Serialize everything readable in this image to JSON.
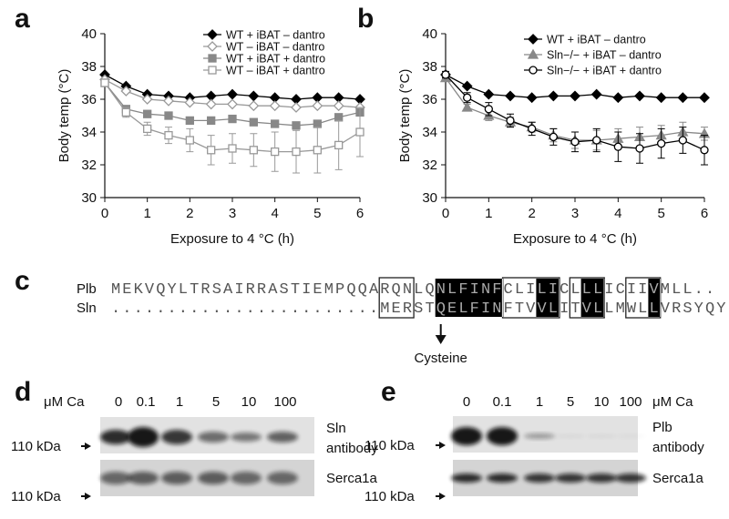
{
  "chart_data": [
    {
      "type": "line",
      "panel_label": "a",
      "y_label": "Body temp (°C)",
      "x_label": "Exposure to 4 °C (h)",
      "x": [
        0,
        0.5,
        1,
        1.5,
        2,
        2.5,
        3,
        3.5,
        4,
        4.5,
        5,
        5.5,
        6
      ],
      "xlim": [
        0,
        6
      ],
      "xticks": [
        0,
        1,
        2,
        3,
        4,
        5,
        6
      ],
      "ylim": [
        30,
        40
      ],
      "yticks": [
        30,
        32,
        34,
        36,
        38,
        40
      ],
      "series": [
        {
          "name": "WT + iBAT – dantro",
          "color": "#000000",
          "marker": "diamond",
          "filled": true,
          "values": [
            37.5,
            36.8,
            36.3,
            36.2,
            36.1,
            36.2,
            36.3,
            36.2,
            36.1,
            36.0,
            36.1,
            36.1,
            36.0
          ]
        },
        {
          "name": "WT – iBAT – dantro",
          "color": "#999999",
          "marker": "diamond",
          "filled": false,
          "values": [
            37.2,
            36.5,
            36.0,
            35.9,
            35.8,
            35.7,
            35.7,
            35.6,
            35.6,
            35.5,
            35.6,
            35.6,
            35.5
          ]
        },
        {
          "name": "WT + iBAT + dantro",
          "color": "#888888",
          "marker": "square",
          "filled": true,
          "values": [
            37.0,
            35.4,
            35.1,
            35.0,
            34.7,
            34.7,
            34.8,
            34.6,
            34.5,
            34.4,
            34.5,
            34.9,
            35.2
          ]
        },
        {
          "name": "WT – iBAT + dantro",
          "color": "#999999",
          "marker": "square",
          "filled": false,
          "values": [
            37.0,
            35.2,
            34.2,
            33.8,
            33.5,
            32.9,
            33.0,
            32.9,
            32.8,
            32.8,
            32.9,
            33.2,
            34.0
          ],
          "errors": [
            0.2,
            0.3,
            0.4,
            0.5,
            0.7,
            0.9,
            0.9,
            1.0,
            1.2,
            1.3,
            1.4,
            1.5,
            1.5
          ]
        }
      ]
    },
    {
      "type": "line",
      "panel_label": "b",
      "y_label": "Body temp (°C)",
      "x_label": "Exposure to 4 °C (h)",
      "x": [
        0,
        0.5,
        1,
        1.5,
        2,
        2.5,
        3,
        3.5,
        4,
        4.5,
        5,
        5.5,
        6
      ],
      "xlim": [
        0,
        6
      ],
      "xticks": [
        0,
        1,
        2,
        3,
        4,
        5,
        6
      ],
      "ylim": [
        30,
        40
      ],
      "yticks": [
        30,
        32,
        34,
        36,
        38,
        40
      ],
      "series": [
        {
          "name": "WT + iBAT – dantro",
          "color": "#000000",
          "marker": "diamond",
          "filled": true,
          "values": [
            37.5,
            36.8,
            36.3,
            36.2,
            36.1,
            36.2,
            36.2,
            36.3,
            36.1,
            36.2,
            36.1,
            36.1,
            36.1
          ]
        },
        {
          "name": "Sln−/− + iBAT – dantro",
          "color": "#888888",
          "marker": "triangle",
          "filled": true,
          "values": [
            37.3,
            35.5,
            35.0,
            34.6,
            34.3,
            33.8,
            33.5,
            33.5,
            33.6,
            33.7,
            33.8,
            34.0,
            33.9
          ],
          "errors": [
            0.2,
            0.2,
            0.3,
            0.3,
            0.3,
            0.4,
            0.5,
            0.6,
            0.6,
            0.6,
            0.6,
            0.6,
            0.4
          ]
        },
        {
          "name": "Sln−/− + iBAT + dantro",
          "color": "#000000",
          "marker": "circle",
          "filled": false,
          "values": [
            37.5,
            36.1,
            35.4,
            34.7,
            34.2,
            33.7,
            33.4,
            33.5,
            33.1,
            33.0,
            33.3,
            33.5,
            32.9
          ],
          "errors": [
            0.2,
            0.3,
            0.4,
            0.4,
            0.4,
            0.5,
            0.6,
            0.7,
            0.9,
            0.9,
            0.9,
            0.8,
            0.9
          ]
        }
      ]
    }
  ],
  "panel_c": {
    "label": "c",
    "rows": [
      {
        "name": "Plb",
        "sequence": "MEKVQYLTRSAIRRASTIEMPQQARQNLQNLFINFCLILICLLLICIIVMLL.."
      },
      {
        "name": "Sln",
        "sequence": "........................MERSTQELFINFTVVLITVLLMWLLVRSYQY"
      }
    ],
    "annotation": "Cysteine"
  },
  "panel_d": {
    "label": "d",
    "unit": "μM Ca",
    "concentrations": [
      "0",
      "0.1",
      "1",
      "5",
      "10",
      "100"
    ],
    "blots": [
      {
        "name_lines": [
          "Sln",
          "antibody"
        ],
        "marker": "110 kDa"
      },
      {
        "name_lines": [
          "Serca1a"
        ],
        "marker": "110 kDa"
      }
    ]
  },
  "panel_e": {
    "label": "e",
    "unit": "μM Ca",
    "concentrations": [
      "0",
      "0.1",
      "1",
      "5",
      "10",
      "100"
    ],
    "blots": [
      {
        "name_lines": [
          "Plb",
          "antibody"
        ],
        "marker": "110 kDa"
      },
      {
        "name_lines": [
          "Serca1a"
        ],
        "marker": "110 kDa"
      }
    ]
  }
}
